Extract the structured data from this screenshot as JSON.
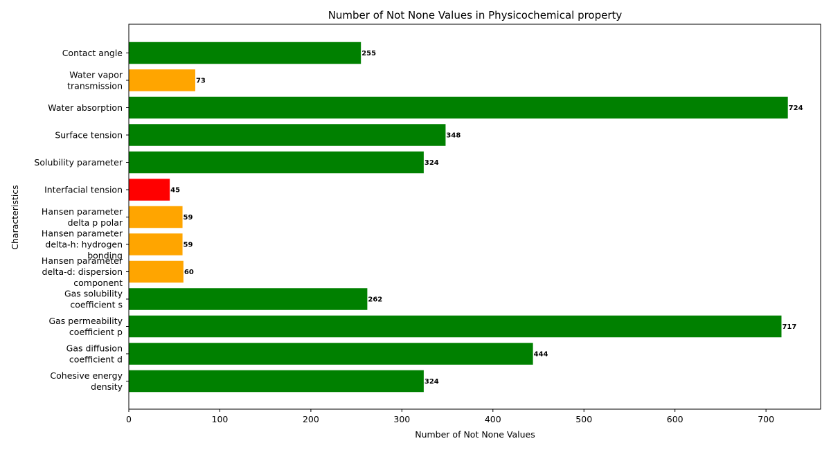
{
  "chart_data": {
    "type": "bar",
    "orientation": "horizontal",
    "title": "Number of Not None Values in Physicochemical property",
    "xlabel": "Number of Not None Values",
    "ylabel": "Characteristics",
    "xlim": [
      0,
      760
    ],
    "xticks": [
      0,
      100,
      200,
      300,
      400,
      500,
      600,
      700
    ],
    "grid": false,
    "categories": [
      [
        "Contact angle"
      ],
      [
        "Water vapor",
        "transmission"
      ],
      [
        "Water absorption"
      ],
      [
        "Surface tension"
      ],
      [
        "Solubility parameter"
      ],
      [
        "Interfacial tension"
      ],
      [
        "Hansen parameter",
        "delta p polar"
      ],
      [
        "Hansen parameter",
        "delta-h: hydrogen",
        "bonding"
      ],
      [
        "Hansen parameter",
        "delta-d: dispersion",
        "component"
      ],
      [
        "Gas solubility",
        "coefficient s"
      ],
      [
        "Gas permeability",
        "coefficient p"
      ],
      [
        "Gas diffusion",
        "coefficient d"
      ],
      [
        "Cohesive energy",
        "density"
      ]
    ],
    "values": [
      255,
      73,
      724,
      348,
      324,
      45,
      59,
      59,
      60,
      262,
      717,
      444,
      324
    ],
    "colors": [
      "#008000",
      "#ffa500",
      "#008000",
      "#008000",
      "#008000",
      "#ff0000",
      "#ffa500",
      "#ffa500",
      "#ffa500",
      "#008000",
      "#008000",
      "#008000",
      "#008000"
    ]
  }
}
